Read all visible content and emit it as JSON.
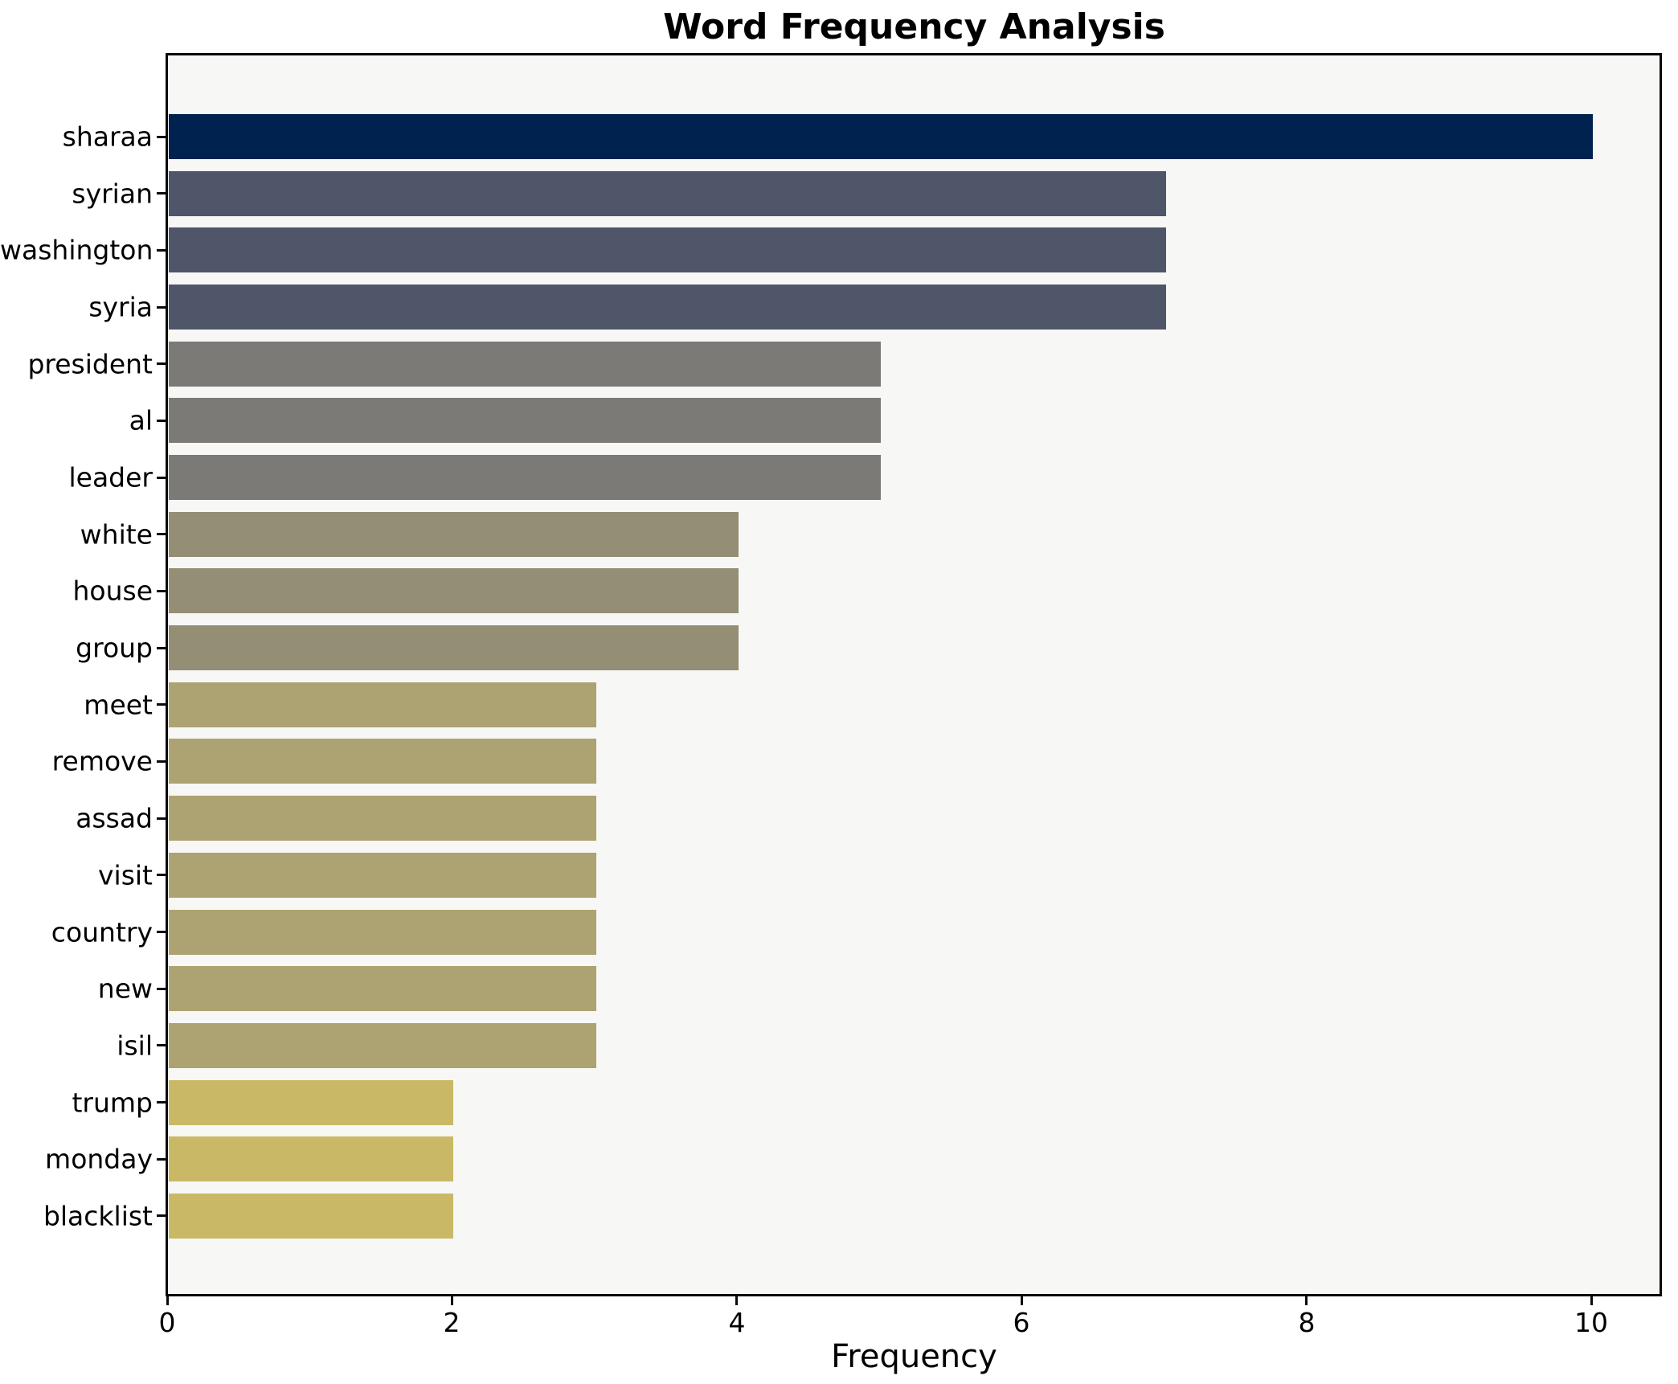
{
  "chart_data": {
    "type": "bar",
    "orientation": "horizontal",
    "title": "Word Frequency Analysis",
    "xlabel": "Frequency",
    "ylabel": "",
    "categories": [
      "sharaa",
      "syrian",
      "washington",
      "syria",
      "president",
      "al",
      "leader",
      "white",
      "house",
      "group",
      "meet",
      "remove",
      "assad",
      "visit",
      "country",
      "new",
      "isil",
      "trump",
      "monday",
      "blacklist"
    ],
    "values": [
      10,
      7,
      7,
      7,
      5,
      5,
      5,
      4,
      4,
      4,
      3,
      3,
      3,
      3,
      3,
      3,
      3,
      2,
      2,
      2
    ],
    "bar_colors": [
      "#00224e",
      "#4f5669",
      "#4f5669",
      "#4f5669",
      "#7b7a76",
      "#7b7a76",
      "#7b7a76",
      "#938e74",
      "#938e74",
      "#938e74",
      "#ada271",
      "#ada271",
      "#ada271",
      "#ada271",
      "#ada271",
      "#ada271",
      "#ada271",
      "#c9b865",
      "#c9b865",
      "#c9b865"
    ],
    "x_ticks": [
      0,
      2,
      4,
      6,
      8,
      10
    ],
    "xlim": [
      0,
      10.49
    ],
    "grid": false,
    "legend": "none",
    "colormap": "cividis",
    "figure_bg": "#ffffff",
    "plot_bg": "#f7f7f6",
    "spine_color": "#0a0a0a",
    "text_color": "#000000"
  }
}
